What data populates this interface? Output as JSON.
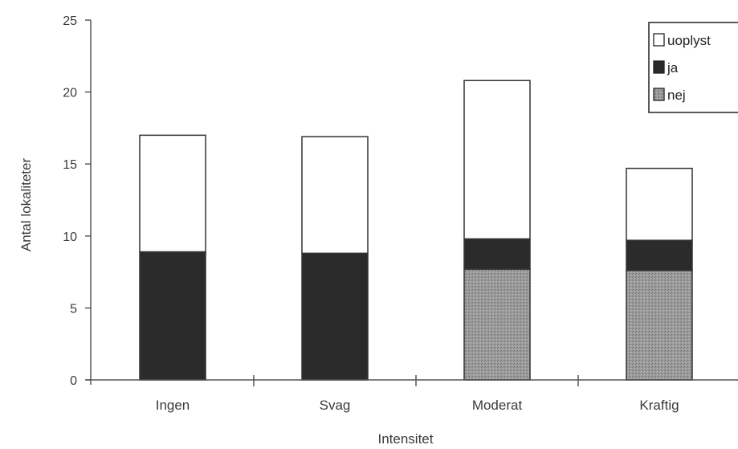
{
  "chart_data": {
    "type": "bar",
    "stacked": true,
    "categories": [
      "Ingen",
      "Svag",
      "Moderat",
      "Kraftig"
    ],
    "series": [
      {
        "name": "nej",
        "values": [
          0,
          0,
          7.7,
          7.6
        ],
        "color": "#8c8c8c",
        "pattern": "stipple"
      },
      {
        "name": "ja",
        "values": [
          8.9,
          8.8,
          2.1,
          2.1
        ],
        "color": "#2b2b2b"
      },
      {
        "name": "uoplyst",
        "values": [
          8.1,
          8.1,
          11.0,
          5.0
        ],
        "color": "#ffffff"
      }
    ],
    "xlabel": "Intensitet",
    "ylabel": "Antal lokaliteter",
    "ylim": [
      0,
      25
    ],
    "yticks": [
      0,
      5,
      10,
      15,
      20,
      25
    ],
    "ytick_labels": [
      "0",
      "5",
      "10",
      "15",
      "20",
      "25"
    ],
    "legend": {
      "position": "top-right",
      "entries": [
        {
          "label": "uoplyst",
          "series": "uoplyst"
        },
        {
          "label": "ja",
          "series": "ja"
        },
        {
          "label": "nej",
          "series": "nej"
        }
      ]
    },
    "grid": false
  }
}
